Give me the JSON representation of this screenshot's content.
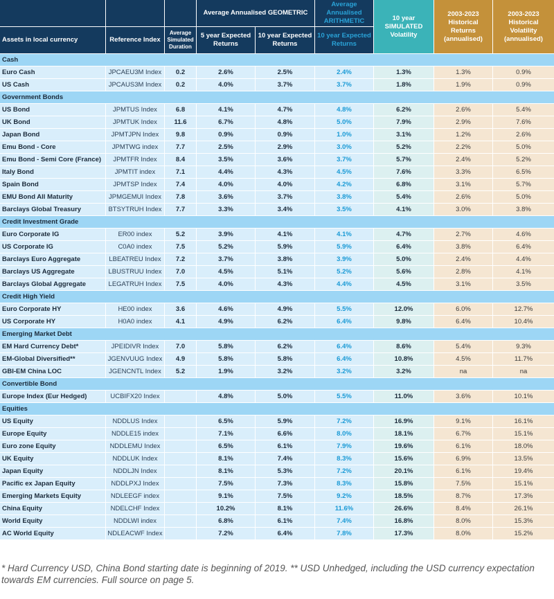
{
  "header": {
    "assets": "Assets in local currency",
    "reference": "Reference Index",
    "duration": "Average Simulated Duration",
    "geometric": "Average Annualised GEOMETRIC",
    "arithmetic": "Average Annualised ARITHMETIC",
    "five_year": "5 year Expected Returns",
    "ten_year": "10 year Expected Returns",
    "ten_year_arith": "10 year Expected Returns",
    "volatility": "10 year SIMULATED Volatility",
    "hist_returns": "2003-2023 Historical Returns (annualised)",
    "hist_vol": "2003-2023 Historical Volatility (annualised)"
  },
  "colors": {
    "header": "#143a5e",
    "arithmetic": "#1a9ad6",
    "volatility": "#3bb3b8",
    "historical": "#c4913a",
    "section": "#9dd6f5"
  },
  "sections": [
    {
      "title": "Cash",
      "rows": [
        [
          "Euro Cash",
          "JPCAEU3M Index",
          "0.2",
          "2.6%",
          "2.5%",
          "2.4%",
          "1.3%",
          "1.3%",
          "0.9%"
        ],
        [
          "US Cash",
          "JPCAUS3M Index",
          "0.2",
          "4.0%",
          "3.7%",
          "3.7%",
          "1.8%",
          "1.9%",
          "0.9%"
        ]
      ]
    },
    {
      "title": "Government Bonds",
      "rows": [
        [
          "US Bond",
          "JPMTUS Index",
          "6.8",
          "4.1%",
          "4.7%",
          "4.8%",
          "6.2%",
          "2.6%",
          "5.4%"
        ],
        [
          "UK Bond",
          "JPMTUK Index",
          "11.6",
          "6.7%",
          "4.8%",
          "5.0%",
          "7.9%",
          "2.9%",
          "7.6%"
        ],
        [
          "Japan Bond",
          "JPMTJPN Index",
          "9.8",
          "0.9%",
          "0.9%",
          "1.0%",
          "3.1%",
          "1.2%",
          "2.6%"
        ],
        [
          "Emu Bond - Core",
          "JPMTWG index",
          "7.7",
          "2.5%",
          "2.9%",
          "3.0%",
          "5.2%",
          "2.2%",
          "5.0%"
        ],
        [
          "Emu Bond - Semi Core (France)",
          "JPMTFR Index",
          "8.4",
          "3.5%",
          "3.6%",
          "3.7%",
          "5.7%",
          "2.4%",
          "5.2%"
        ],
        [
          "Italy Bond",
          "JPMTIT index",
          "7.1",
          "4.4%",
          "4.3%",
          "4.5%",
          "7.6%",
          "3.3%",
          "6.5%"
        ],
        [
          "Spain Bond",
          "JPMTSP Index",
          "7.4",
          "4.0%",
          "4.0%",
          "4.2%",
          "6.8%",
          "3.1%",
          "5.7%"
        ],
        [
          "EMU Bond All Maturity",
          "JPMGEMUI Index",
          "7.8",
          "3.6%",
          "3.7%",
          "3.8%",
          "5.4%",
          "2.6%",
          "5.0%"
        ],
        [
          "Barclays Global Treasury",
          "BTSYTRUH Index",
          "7.7",
          "3.3%",
          "3.4%",
          "3.5%",
          "4.1%",
          "3.0%",
          "3.8%"
        ]
      ]
    },
    {
      "title": "Credit Investment Grade",
      "rows": [
        [
          "Euro Corporate IG",
          "ER00 index",
          "5.2",
          "3.9%",
          "4.1%",
          "4.1%",
          "4.7%",
          "2.7%",
          "4.6%"
        ],
        [
          "US Corporate IG",
          "C0A0 index",
          "7.5",
          "5.2%",
          "5.9%",
          "5.9%",
          "6.4%",
          "3.8%",
          "6.4%"
        ],
        [
          "Barclays Euro Aggregate",
          "LBEATREU Index",
          "7.2",
          "3.7%",
          "3.8%",
          "3.9%",
          "5.0%",
          "2.4%",
          "4.4%"
        ],
        [
          "Barclays US Aggregate",
          "LBUSTRUU Index",
          "7.0",
          "4.5%",
          "5.1%",
          "5.2%",
          "5.6%",
          "2.8%",
          "4.1%"
        ],
        [
          "Barclays Global Aggregate",
          "LEGATRUH Index",
          "7.5",
          "4.0%",
          "4.3%",
          "4.4%",
          "4.5%",
          "3.1%",
          "3.5%"
        ]
      ]
    },
    {
      "title": "Credit High Yield",
      "rows": [
        [
          "Euro Corporate HY",
          "HE00 index",
          "3.6",
          "4.6%",
          "4.9%",
          "5.5%",
          "12.0%",
          "6.0%",
          "12.7%"
        ],
        [
          "US Corporate HY",
          "H0A0 index",
          "4.1",
          "4.9%",
          "6.2%",
          "6.4%",
          "9.8%",
          "6.4%",
          "10.4%"
        ]
      ]
    },
    {
      "title": "Emerging Market Debt",
      "rows": [
        [
          "EM Hard Currency Debt*",
          "JPEIDIVR Index",
          "7.0",
          "5.8%",
          "6.2%",
          "6.4%",
          "8.6%",
          "5.4%",
          "9.3%"
        ],
        [
          "EM-Global Diversified**",
          "JGENVUUG Index",
          "4.9",
          "5.8%",
          "5.8%",
          "6.4%",
          "10.8%",
          "4.5%",
          "11.7%"
        ],
        [
          "GBI-EM China LOC",
          "JGENCNTL Index",
          "5.2",
          "1.9%",
          "3.2%",
          "3.2%",
          "3.2%",
          "na",
          "na"
        ]
      ]
    },
    {
      "title": "Convertible Bond",
      "rows": [
        [
          "Europe Index (Eur Hedged)",
          "UCBIFX20 Index",
          "",
          "4.8%",
          "5.0%",
          "5.5%",
          "11.0%",
          "3.6%",
          "10.1%"
        ]
      ]
    },
    {
      "title": "Equities",
      "rows": [
        [
          "US Equity",
          "NDDLUS Index",
          "",
          "6.5%",
          "5.9%",
          "7.2%",
          "16.9%",
          "9.1%",
          "16.1%"
        ],
        [
          "Europe Equity",
          "NDDLE15 index",
          "",
          "7.1%",
          "6.6%",
          "8.0%",
          "18.1%",
          "6.7%",
          "15.1%"
        ],
        [
          "Euro zone Equity",
          "NDDLEMU Index",
          "",
          "6.5%",
          "6.1%",
          "7.9%",
          "19.6%",
          "6.1%",
          "18.0%"
        ],
        [
          "UK Equity",
          "NDDLUK Index",
          "",
          "8.1%",
          "7.4%",
          "8.3%",
          "15.6%",
          "6.9%",
          "13.5%"
        ],
        [
          "Japan Equity",
          "NDDLJN Index",
          "",
          "8.1%",
          "5.3%",
          "7.2%",
          "20.1%",
          "6.1%",
          "19.4%"
        ],
        [
          "Pacific ex Japan Equity",
          "NDDLPXJ Index",
          "",
          "7.5%",
          "7.3%",
          "8.3%",
          "15.8%",
          "7.5%",
          "15.1%"
        ],
        [
          "Emerging Markets Equity",
          "NDLEEGF index",
          "",
          "9.1%",
          "7.5%",
          "9.2%",
          "18.5%",
          "8.7%",
          "17.3%"
        ],
        [
          "China Equity",
          "NDELCHF Index",
          "",
          "10.2%",
          "8.1%",
          "11.6%",
          "26.6%",
          "8.4%",
          "26.1%"
        ],
        [
          "World Equity",
          "NDDLWI index",
          "",
          "6.8%",
          "6.1%",
          "7.4%",
          "16.8%",
          "8.0%",
          "15.3%"
        ],
        [
          "AC World Equity",
          "NDLEACWF Index",
          "",
          "7.2%",
          "6.4%",
          "7.8%",
          "17.3%",
          "8.0%",
          "15.2%"
        ]
      ]
    }
  ],
  "footnote": "* Hard Currency USD, China Bond starting date is beginning of 2019. ** USD Unhedged, including the USD currency expectation towards EM currencies. Full source on page 5."
}
